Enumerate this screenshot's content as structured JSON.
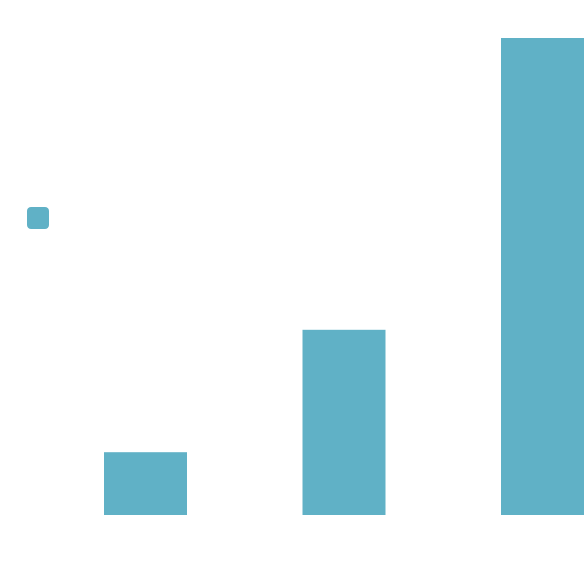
{
  "chart_data": {
    "type": "bar",
    "categories": [
      "",
      "",
      ""
    ],
    "values": [
      1,
      2.95,
      7.6
    ],
    "ylim": [
      0,
      7.6
    ],
    "grid": false,
    "legend_placement": "left",
    "colors": {
      "bar": "#60b1c6",
      "background": "#ffffff"
    }
  }
}
